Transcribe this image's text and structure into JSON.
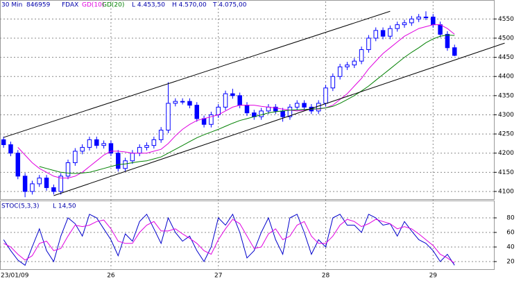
{
  "chart_data": [
    {
      "type": "candlestick",
      "header": [
        "30 Min",
        "846959",
        "FDAX"
      ],
      "stats": [
        "L 4.453,50",
        "H 4.570,00",
        "T 4.075,00"
      ],
      "x": [
        0,
        1,
        2,
        3,
        4,
        5,
        6,
        7,
        8,
        9,
        10,
        11,
        12,
        13,
        14,
        15,
        16,
        17,
        18,
        19,
        20,
        21,
        22,
        23,
        24,
        25,
        26,
        27,
        28,
        29,
        30,
        31,
        32,
        33,
        34,
        35,
        36,
        37,
        38,
        39,
        40,
        41,
        42,
        43,
        44,
        45,
        46,
        47,
        48,
        49,
        50,
        51,
        52,
        53,
        54,
        55,
        56,
        57,
        58,
        59,
        60,
        61,
        62,
        63
      ],
      "open": [
        4235,
        4222,
        4200,
        4140,
        4100,
        4120,
        4135,
        4110,
        4100,
        4140,
        4175,
        4205,
        4215,
        4235,
        4220,
        4225,
        4200,
        4160,
        4180,
        4200,
        4215,
        4220,
        4235,
        4260,
        4330,
        4335,
        4335,
        4325,
        4290,
        4275,
        4300,
        4320,
        4355,
        4350,
        4325,
        4305,
        4295,
        4310,
        4320,
        4310,
        4295,
        4320,
        4330,
        4320,
        4310,
        4330,
        4370,
        4400,
        4425,
        4430,
        4440,
        4470,
        4500,
        4520,
        4505,
        4525,
        4535,
        4540,
        4550,
        4555,
        4555,
        4535,
        4510,
        4475
      ],
      "high": [
        4243,
        4230,
        4208,
        4148,
        4128,
        4143,
        4143,
        4118,
        4148,
        4183,
        4213,
        4223,
        4243,
        4243,
        4233,
        4233,
        4208,
        4188,
        4208,
        4223,
        4228,
        4243,
        4268,
        4385,
        4343,
        4343,
        4343,
        4333,
        4298,
        4308,
        4328,
        4363,
        4368,
        4358,
        4333,
        4313,
        4318,
        4328,
        4328,
        4318,
        4328,
        4338,
        4338,
        4328,
        4338,
        4378,
        4408,
        4433,
        4438,
        4448,
        4478,
        4508,
        4528,
        4528,
        4533,
        4543,
        4548,
        4558,
        4563,
        4570,
        4563,
        4543,
        4518,
        4483
      ],
      "low": [
        4214,
        4192,
        4132,
        4085,
        4092,
        4112,
        4102,
        4092,
        4092,
        4132,
        4167,
        4197,
        4207,
        4212,
        4212,
        4192,
        4152,
        4152,
        4172,
        4192,
        4207,
        4212,
        4227,
        4252,
        4322,
        4327,
        4317,
        4282,
        4267,
        4267,
        4292,
        4312,
        4342,
        4317,
        4297,
        4287,
        4287,
        4302,
        4302,
        4282,
        4287,
        4312,
        4312,
        4302,
        4302,
        4322,
        4362,
        4392,
        4417,
        4422,
        4432,
        4462,
        4492,
        4497,
        4497,
        4517,
        4527,
        4532,
        4542,
        4547,
        4527,
        4502,
        4467,
        4453
      ],
      "close": [
        4222,
        4200,
        4140,
        4100,
        4120,
        4135,
        4110,
        4100,
        4140,
        4175,
        4205,
        4215,
        4235,
        4220,
        4225,
        4200,
        4160,
        4180,
        4200,
        4215,
        4220,
        4235,
        4260,
        4330,
        4335,
        4335,
        4325,
        4290,
        4275,
        4300,
        4320,
        4355,
        4350,
        4325,
        4305,
        4295,
        4310,
        4320,
        4310,
        4295,
        4320,
        4330,
        4320,
        4310,
        4330,
        4370,
        4400,
        4425,
        4430,
        4440,
        4470,
        4500,
        4520,
        4505,
        4525,
        4535,
        4540,
        4550,
        4555,
        4555,
        4535,
        4510,
        4475,
        4455
      ],
      "candle_color": "#0000ff",
      "series": [
        {
          "name": "GD(10)",
          "color": "#e000e0",
          "values": [
            null,
            null,
            4215,
            4195,
            4175,
            4160,
            4150,
            4140,
            4135,
            4135,
            4140,
            4150,
            4165,
            4180,
            4195,
            4205,
            4205,
            4203,
            4200,
            4200,
            4200,
            4205,
            4210,
            4225,
            4245,
            4262,
            4275,
            4285,
            4290,
            4295,
            4300,
            4310,
            4320,
            4325,
            4325,
            4325,
            4322,
            4320,
            4318,
            4315,
            4312,
            4310,
            4312,
            4315,
            4315,
            4318,
            4325,
            4340,
            4355,
            4375,
            4395,
            4420,
            4440,
            4460,
            4475,
            4490,
            4505,
            4515,
            4525,
            4530,
            4535,
            4535,
            4525,
            4510
          ]
        },
        {
          "name": "GD(20)",
          "color": "#008000",
          "values": [
            null,
            null,
            null,
            null,
            null,
            4165,
            4160,
            4155,
            4150,
            4148,
            4147,
            4148,
            4150,
            4155,
            4160,
            4165,
            4170,
            4172,
            4175,
            4178,
            4180,
            4185,
            4190,
            4200,
            4210,
            4220,
            4230,
            4240,
            4248,
            4255,
            4262,
            4270,
            4278,
            4285,
            4290,
            4295,
            4300,
            4305,
            4308,
            4310,
            4312,
            4313,
            4314,
            4315,
            4316,
            4318,
            4322,
            4330,
            4340,
            4350,
            4362,
            4375,
            4390,
            4405,
            4420,
            4435,
            4450,
            4463,
            4475,
            4488,
            4498,
            4505,
            4508,
            4507
          ]
        }
      ],
      "trendlines": [
        {
          "x": [
            0,
            54
          ],
          "values": [
            4241,
            4570
          ]
        },
        {
          "x": [
            7,
            70
          ],
          "values": [
            4089,
            4487
          ]
        }
      ],
      "xlim": [
        -0.5,
        68.5
      ],
      "ylim": [
        4080,
        4585
      ],
      "yticks": [
        4100,
        4150,
        4200,
        4250,
        4300,
        4350,
        4400,
        4450,
        4500,
        4550
      ],
      "grid": true
    },
    {
      "type": "line",
      "title": "STOC(5,3,3)",
      "stats": [
        "L 14,50"
      ],
      "x": [
        0,
        1,
        2,
        3,
        4,
        5,
        6,
        7,
        8,
        9,
        10,
        11,
        12,
        13,
        14,
        15,
        16,
        17,
        18,
        19,
        20,
        21,
        22,
        23,
        24,
        25,
        26,
        27,
        28,
        29,
        30,
        31,
        32,
        33,
        34,
        35,
        36,
        37,
        38,
        39,
        40,
        41,
        42,
        43,
        44,
        45,
        46,
        47,
        48,
        49,
        50,
        51,
        52,
        53,
        54,
        55,
        56,
        57,
        58,
        59,
        60,
        61,
        62,
        63
      ],
      "series": [
        {
          "color": "#0000cc",
          "values": [
            50,
            35,
            22,
            15,
            40,
            65,
            35,
            20,
            55,
            80,
            72,
            55,
            85,
            80,
            65,
            50,
            28,
            58,
            48,
            75,
            85,
            65,
            45,
            80,
            60,
            48,
            55,
            35,
            20,
            40,
            80,
            70,
            85,
            60,
            25,
            35,
            60,
            80,
            50,
            30,
            80,
            85,
            60,
            30,
            50,
            40,
            80,
            85,
            70,
            70,
            60,
            85,
            80,
            70,
            72,
            55,
            75,
            62,
            50,
            45,
            35,
            20,
            30,
            15
          ]
        },
        {
          "color": "#e000e0",
          "values": [
            45,
            40,
            30,
            22,
            28,
            45,
            48,
            35,
            38,
            55,
            70,
            68,
            70,
            75,
            77,
            65,
            48,
            45,
            45,
            60,
            70,
            75,
            62,
            62,
            65,
            58,
            52,
            45,
            35,
            30,
            50,
            65,
            78,
            72,
            55,
            38,
            40,
            58,
            65,
            50,
            55,
            70,
            75,
            55,
            45,
            45,
            55,
            70,
            78,
            75,
            68,
            72,
            78,
            75,
            72,
            65,
            68,
            65,
            58,
            50,
            42,
            30,
            25,
            18
          ]
        }
      ],
      "xlim": [
        -0.5,
        68.5
      ],
      "ylim": [
        10,
        100
      ],
      "yticks": [
        20,
        40,
        60,
        80
      ],
      "xticks": [
        {
          "value": 0,
          "label": "23/01/09"
        },
        {
          "value": 15,
          "label": "26"
        },
        {
          "value": 30,
          "label": "27"
        },
        {
          "value": 45,
          "label": "28"
        },
        {
          "value": 60,
          "label": "29"
        }
      ],
      "grid": true
    }
  ]
}
